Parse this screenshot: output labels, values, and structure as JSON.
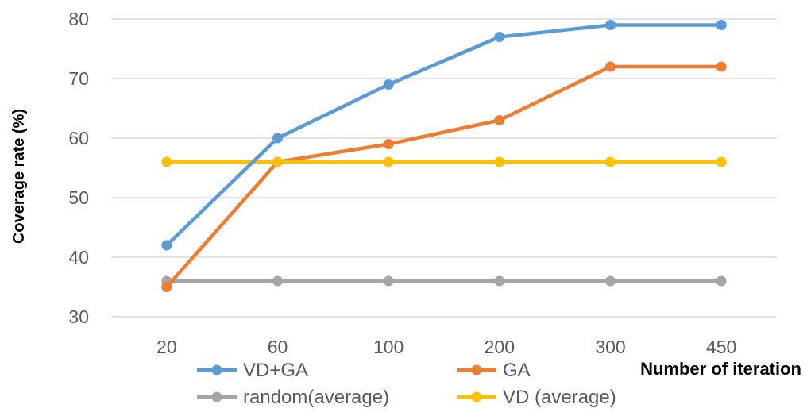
{
  "chart_data": {
    "type": "line",
    "categories": [
      "20",
      "60",
      "100",
      "200",
      "300",
      "450"
    ],
    "series": [
      {
        "name": "VD+GA",
        "values": [
          42,
          60,
          69,
          77,
          79,
          79
        ],
        "color": "#5b9bd5"
      },
      {
        "name": "GA",
        "values": [
          35,
          56,
          59,
          63,
          72,
          72
        ],
        "color": "#ed7d31"
      },
      {
        "name": "random(average)",
        "values": [
          36,
          36,
          36,
          36,
          36,
          36
        ],
        "color": "#a5a5a5"
      },
      {
        "name": "VD (average)",
        "values": [
          56,
          56,
          56,
          56,
          56,
          56
        ],
        "color": "#ffc000"
      }
    ],
    "ylim": [
      30,
      80
    ],
    "yticks": [
      30,
      40,
      50,
      60,
      70,
      80
    ],
    "xlabel": "Number of iteration",
    "ylabel": "Coverage rate (%)",
    "grid": "horizontal",
    "legend_position": "bottom"
  }
}
